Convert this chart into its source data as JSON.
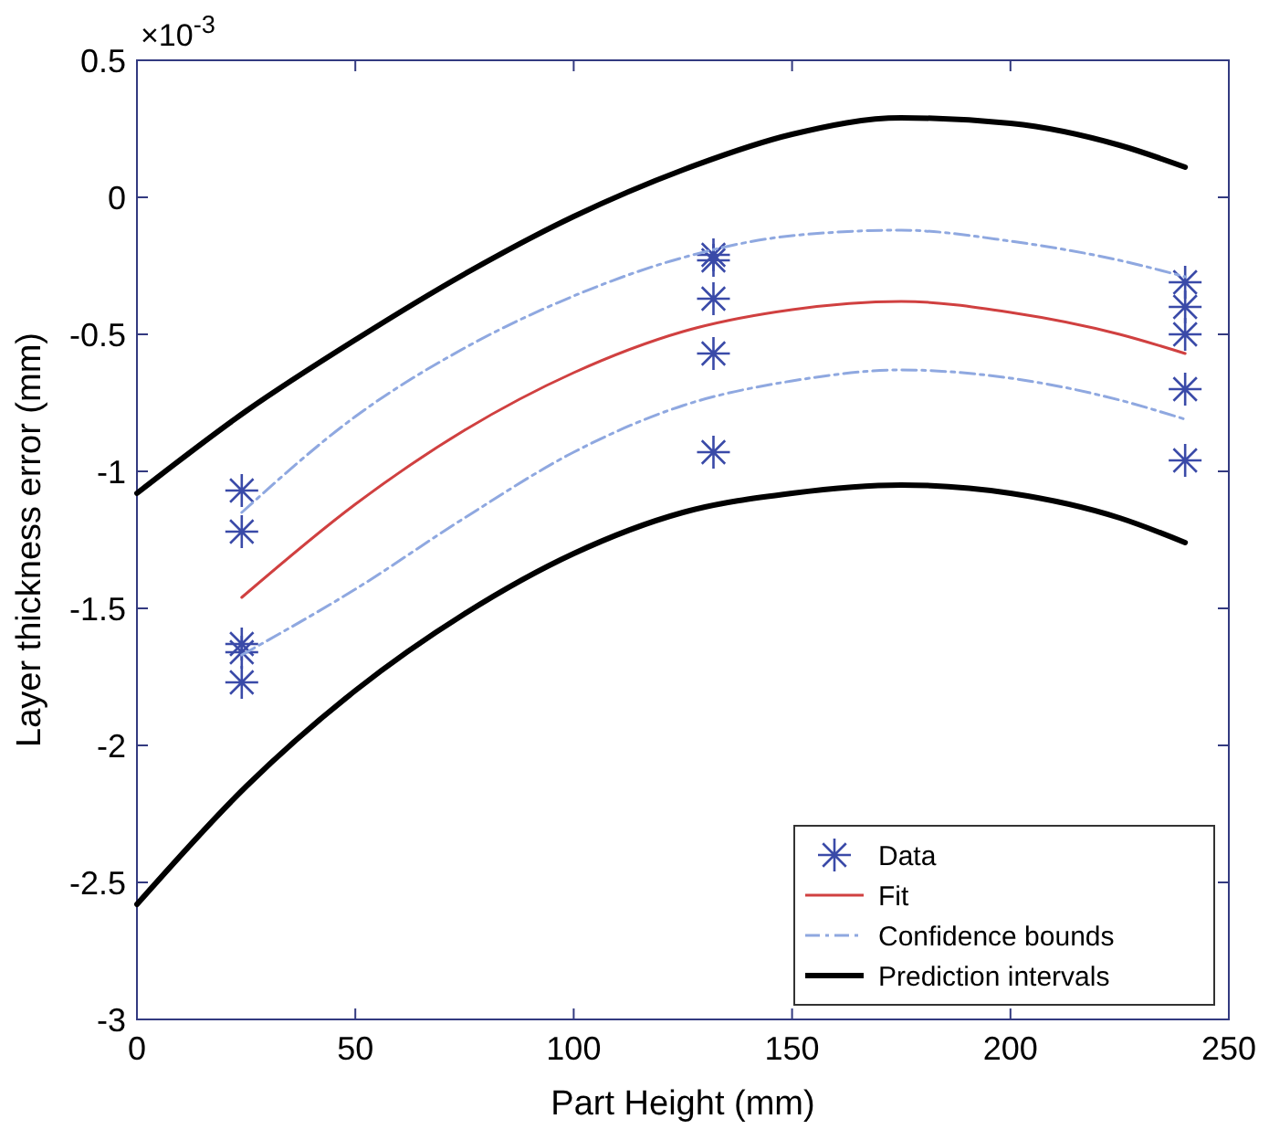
{
  "chart_data": {
    "type": "line",
    "xlabel": "Part Height (mm)",
    "ylabel": "Layer thickness error (mm)",
    "annotations": [
      "×10$^{-3}$"
    ],
    "xlim": [
      0,
      250
    ],
    "xticks": [
      0,
      50,
      100,
      150,
      200,
      250
    ],
    "ylim": [
      -3,
      0.5
    ],
    "yticks": [
      -3,
      -2.5,
      -2,
      -1.5,
      -1,
      -0.5,
      0,
      0.5
    ],
    "grid": false,
    "legend": "bottom right",
    "series": [
      {
        "name": "Data",
        "type": "scatter",
        "marker": "cross",
        "color": "#3a4aa8",
        "x": [
          24,
          24,
          24,
          24,
          24,
          132,
          132,
          132,
          132,
          132,
          240,
          240,
          240,
          240,
          240
        ],
        "values": [
          -1.07,
          -1.22,
          -1.63,
          -1.66,
          -1.77,
          -0.21,
          -0.23,
          -0.37,
          -0.57,
          -0.93,
          -0.31,
          -0.4,
          -0.5,
          -0.7,
          -0.96
        ]
      },
      {
        "name": "Fit",
        "color": "#d04040",
        "line_style": "solid",
        "x": [
          24,
          50,
          75,
          100,
          125,
          150,
          175,
          200,
          225,
          240
        ],
        "values": [
          -1.46,
          -1.12,
          -0.85,
          -0.64,
          -0.49,
          -0.41,
          -0.38,
          -0.42,
          -0.5,
          -0.57
        ]
      },
      {
        "name": "Confidence bounds",
        "color": "#8fa8e0",
        "line_style": "dashed",
        "x": [
          24,
          50,
          75,
          100,
          125,
          150,
          175,
          200,
          225,
          240
        ],
        "values": [
          -1.15,
          -0.8,
          -0.55,
          -0.36,
          -0.22,
          -0.14,
          -0.12,
          -0.16,
          -0.23,
          -0.29
        ]
      },
      {
        "color": "#8fa8e0",
        "line_style": "dashed",
        "x": [
          24,
          50,
          75,
          100,
          125,
          150,
          175,
          200,
          225,
          240
        ],
        "values": [
          -1.67,
          -1.43,
          -1.17,
          -0.93,
          -0.76,
          -0.67,
          -0.63,
          -0.66,
          -0.74,
          -0.81
        ]
      },
      {
        "name": "Prediction intervals",
        "color": "#000000",
        "line_style": "solid",
        "x": [
          0,
          25,
          50,
          75,
          100,
          125,
          150,
          175,
          200,
          225,
          240
        ],
        "values": [
          -1.08,
          -0.78,
          -0.52,
          -0.28,
          -0.07,
          0.1,
          0.23,
          0.29,
          0.27,
          0.19,
          0.11
        ]
      },
      {
        "color": "#000000",
        "line_style": "solid",
        "x": [
          0,
          25,
          50,
          75,
          100,
          125,
          150,
          175,
          200,
          225,
          240
        ],
        "values": [
          -2.58,
          -2.15,
          -1.8,
          -1.52,
          -1.3,
          -1.15,
          -1.08,
          -1.05,
          -1.08,
          -1.17,
          -1.26
        ]
      }
    ]
  }
}
